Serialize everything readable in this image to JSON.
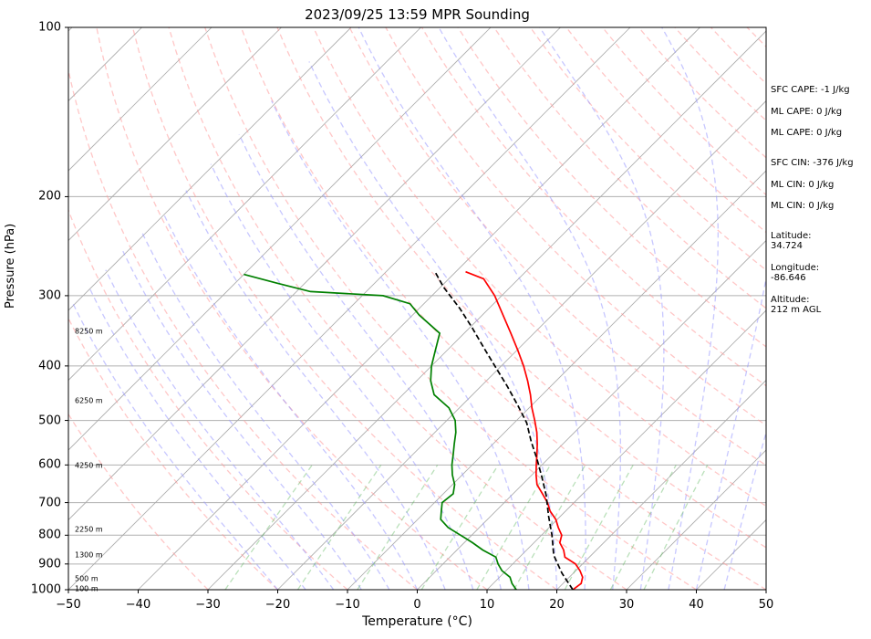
{
  "chart_data": {
    "type": "line",
    "title": "2023/09/25 13:59 MPR Sounding",
    "xlabel": "Temperature (°C)",
    "ylabel": "Pressure (hPa)",
    "xlim": [
      -50,
      50
    ],
    "ylim": [
      1000,
      100
    ],
    "y_scale": "log",
    "skew": true,
    "grid": true,
    "x_ticks": [
      "−50",
      "−40",
      "−30",
      "−20",
      "−10",
      "0",
      "10",
      "20",
      "30",
      "40",
      "50"
    ],
    "y_ticks": [
      "100",
      "200",
      "300",
      "400",
      "500",
      "600",
      "700",
      "800",
      "900",
      "1000"
    ],
    "height_labels": [
      {
        "p": 995,
        "label": "100 m"
      },
      {
        "p": 955,
        "label": "500 m"
      },
      {
        "p": 868,
        "label": "1300 m"
      },
      {
        "p": 780,
        "label": "2250 m"
      },
      {
        "p": 602,
        "label": "4250 m"
      },
      {
        "p": 462,
        "label": "6250 m"
      },
      {
        "p": 347,
        "label": "8250 m"
      }
    ],
    "series": [
      {
        "name": "Temperature",
        "color": "#ff0000",
        "style": "solid",
        "points": [
          [
            22.3,
            1000
          ],
          [
            22.6,
            975
          ],
          [
            21.9,
            950
          ],
          [
            20.6,
            925
          ],
          [
            19.0,
            900
          ],
          [
            16.5,
            875
          ],
          [
            15.3,
            850
          ],
          [
            13.7,
            825
          ],
          [
            12.9,
            800
          ],
          [
            11.3,
            775
          ],
          [
            9.8,
            750
          ],
          [
            7.8,
            725
          ],
          [
            6.2,
            700
          ],
          [
            4.2,
            675
          ],
          [
            2.1,
            650
          ],
          [
            0.6,
            625
          ],
          [
            -0.8,
            600
          ],
          [
            -2.2,
            575
          ],
          [
            -3.7,
            550
          ],
          [
            -5.4,
            525
          ],
          [
            -7.4,
            500
          ],
          [
            -9.6,
            475
          ],
          [
            -11.7,
            450
          ],
          [
            -14.1,
            425
          ],
          [
            -16.8,
            400
          ],
          [
            -19.9,
            375
          ],
          [
            -23.3,
            350
          ],
          [
            -27.0,
            325
          ],
          [
            -31.0,
            300
          ],
          [
            -35.0,
            280
          ],
          [
            -38.6,
            272
          ]
        ]
      },
      {
        "name": "Dewpoint",
        "color": "#008000",
        "style": "solid",
        "points": [
          [
            14.2,
            1000
          ],
          [
            12.7,
            975
          ],
          [
            11.5,
            950
          ],
          [
            9.4,
            925
          ],
          [
            7.9,
            900
          ],
          [
            6.6,
            875
          ],
          [
            3.7,
            850
          ],
          [
            1.2,
            825
          ],
          [
            -1.6,
            800
          ],
          [
            -4.5,
            775
          ],
          [
            -6.7,
            750
          ],
          [
            -7.8,
            725
          ],
          [
            -8.9,
            700
          ],
          [
            -8.6,
            675
          ],
          [
            -9.7,
            650
          ],
          [
            -11.4,
            625
          ],
          [
            -12.9,
            600
          ],
          [
            -14.2,
            575
          ],
          [
            -15.6,
            550
          ],
          [
            -17.0,
            525
          ],
          [
            -18.8,
            500
          ],
          [
            -21.5,
            475
          ],
          [
            -25.5,
            450
          ],
          [
            -28.0,
            425
          ],
          [
            -30.0,
            400
          ],
          [
            -31.7,
            375
          ],
          [
            -33.5,
            350
          ],
          [
            -39.0,
            325
          ],
          [
            -42.0,
            310
          ],
          [
            -47.0,
            300
          ],
          [
            -58.0,
            295
          ],
          [
            -64.0,
            285
          ],
          [
            -70.0,
            275
          ]
        ]
      },
      {
        "name": "Parcel",
        "color": "#000000",
        "style": "dashed",
        "points": [
          [
            22.3,
            1000
          ],
          [
            18.4,
            935
          ],
          [
            14.6,
            868
          ],
          [
            11.5,
            800
          ],
          [
            8.3,
            740
          ],
          [
            5.0,
            680
          ],
          [
            1.7,
            630
          ],
          [
            -1.6,
            585
          ],
          [
            -4.9,
            545
          ],
          [
            -8.2,
            505
          ],
          [
            -12.0,
            470
          ],
          [
            -16.2,
            435
          ],
          [
            -20.5,
            403
          ],
          [
            -25.0,
            372
          ],
          [
            -29.5,
            343
          ],
          [
            -34.2,
            316
          ],
          [
            -39.5,
            290
          ],
          [
            -43.0,
            272
          ]
        ]
      }
    ]
  },
  "stats": {
    "sfc_cape": "SFC CAPE: -1 J/kg",
    "ml_cape_1": "ML CAPE: 0 J/kg",
    "ml_cape_2": "ML CAPE: 0 J/kg",
    "sfc_cin": "SFC CIN: -376 J/kg",
    "ml_cin_1": "ML CIN: 0 J/kg",
    "ml_cin_2": "ML CIN: 0 J/kg",
    "latitude": "Latitude:\n34.724",
    "longitude": "Longitude:\n-86.646",
    "altitude": "Altitude:\n212 m AGL"
  }
}
